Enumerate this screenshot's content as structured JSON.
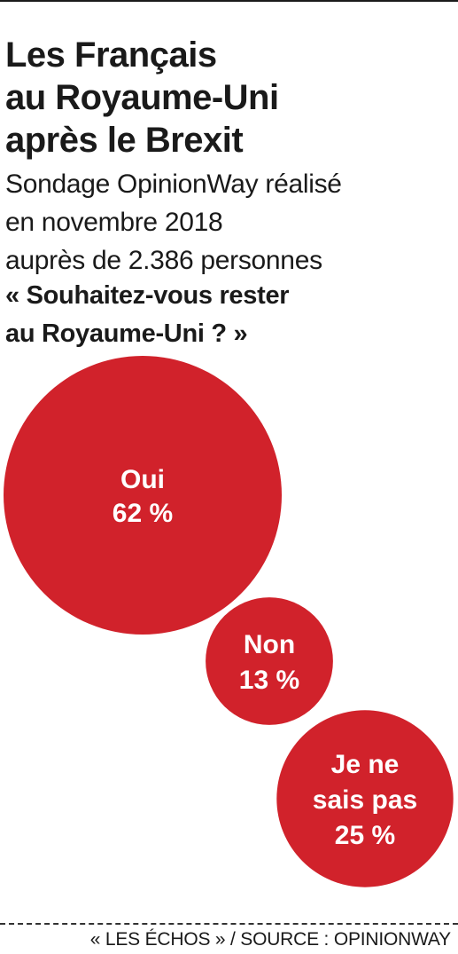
{
  "title": [
    "Les Français",
    "au Royaume-Uni",
    "après le Brexit"
  ],
  "subtitle": [
    "Sondage OpinionWay réalisé",
    "en novembre 2018",
    "auprès de 2.386 personnes"
  ],
  "question": [
    "« Souhaitez-vous rester",
    "au Royaume-Uni ? »"
  ],
  "source": "« LES ÉCHOS » / SOURCE : OPINIONWAY",
  "chart_data": {
    "type": "bubble",
    "title": "",
    "categories": [
      "Oui",
      "Non",
      "Je ne sais pas"
    ],
    "values": [
      62,
      13,
      25
    ],
    "unit": "%",
    "color": "#d1222b",
    "series": [
      {
        "label": [
          "Oui"
        ],
        "value_label": "62 %",
        "value": 62
      },
      {
        "label": [
          "Non"
        ],
        "value_label": "13 %",
        "value": 13
      },
      {
        "label": [
          "Je ne",
          "sais pas"
        ],
        "value_label": "25 %",
        "value": 25
      }
    ]
  }
}
